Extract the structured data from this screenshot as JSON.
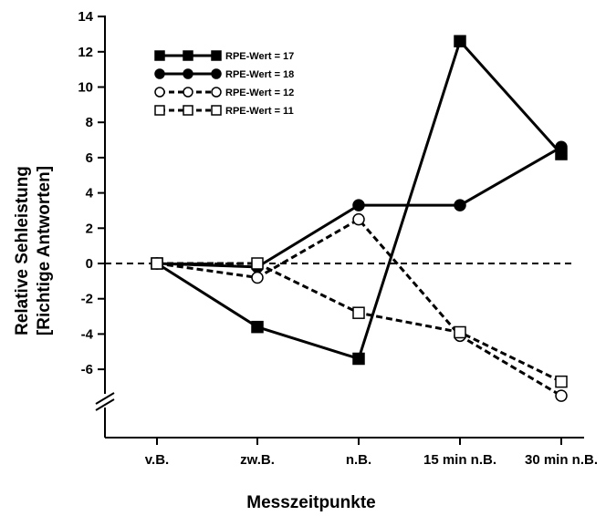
{
  "chart_data": {
    "type": "line",
    "xlabel": "Messzeitpunkte",
    "ylabel_line1": "Relative Sehleistung",
    "ylabel_line2": "[Richtige Antworten]",
    "categories": [
      "v.B.",
      "zw.B.",
      "n.B.",
      "15 min n.B.",
      "30 min n.B."
    ],
    "yticks": [
      -6,
      -4,
      -2,
      0,
      2,
      4,
      6,
      8,
      10,
      12,
      14
    ],
    "ylim": [
      -8,
      14
    ],
    "axis_break": true,
    "reference_line_y": 0,
    "legend_position": "top-left",
    "series": [
      {
        "name": "RPE-Wert = 17",
        "values": [
          0,
          -3.6,
          -5.4,
          12.6,
          6.2
        ],
        "marker": "square",
        "fill": "filled",
        "dash": "solid",
        "color": "#000000"
      },
      {
        "name": "RPE-Wert = 18",
        "values": [
          0,
          -0.2,
          3.3,
          3.3,
          6.6
        ],
        "marker": "circle",
        "fill": "filled",
        "dash": "solid",
        "color": "#000000"
      },
      {
        "name": "RPE-Wert = 12",
        "values": [
          0,
          -0.8,
          2.5,
          -4.1,
          -7.5
        ],
        "marker": "circle",
        "fill": "open",
        "dash": "dashed",
        "color": "#000000"
      },
      {
        "name": "RPE-Wert = 11",
        "values": [
          0,
          0,
          -2.8,
          -3.9,
          -6.7
        ],
        "marker": "square",
        "fill": "open",
        "dash": "dashed",
        "color": "#000000"
      }
    ]
  }
}
